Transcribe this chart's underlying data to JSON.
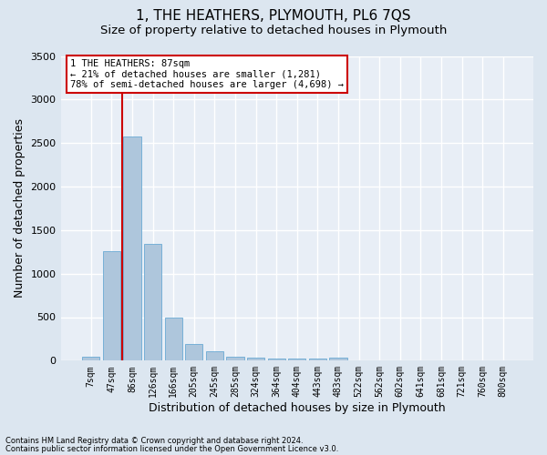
{
  "title": "1, THE HEATHERS, PLYMOUTH, PL6 7QS",
  "subtitle": "Size of property relative to detached houses in Plymouth",
  "xlabel": "Distribution of detached houses by size in Plymouth",
  "ylabel": "Number of detached properties",
  "categories": [
    "7sqm",
    "47sqm",
    "86sqm",
    "126sqm",
    "166sqm",
    "205sqm",
    "245sqm",
    "285sqm",
    "324sqm",
    "364sqm",
    "404sqm",
    "443sqm",
    "483sqm",
    "522sqm",
    "562sqm",
    "602sqm",
    "641sqm",
    "681sqm",
    "721sqm",
    "760sqm",
    "800sqm"
  ],
  "values": [
    50,
    1260,
    2570,
    1340,
    500,
    190,
    110,
    50,
    30,
    20,
    20,
    20,
    30,
    0,
    0,
    0,
    0,
    0,
    0,
    0,
    0
  ],
  "bar_color": "#aec6dc",
  "bar_edge_color": "#6aaad4",
  "highlight_color": "#cc0000",
  "highlight_index": 2,
  "ylim": [
    0,
    3500
  ],
  "yticks": [
    0,
    500,
    1000,
    1500,
    2000,
    2500,
    3000,
    3500
  ],
  "annotation_line1": "1 THE HEATHERS: 87sqm",
  "annotation_line2": "← 21% of detached houses are smaller (1,281)",
  "annotation_line3": "78% of semi-detached houses are larger (4,698) →",
  "annotation_box_facecolor": "#ffffff",
  "annotation_box_edgecolor": "#cc0000",
  "footnote1": "Contains HM Land Registry data © Crown copyright and database right 2024.",
  "footnote2": "Contains public sector information licensed under the Open Government Licence v3.0.",
  "fig_facecolor": "#dce6f0",
  "ax_facecolor": "#e8eef6",
  "grid_color": "#ffffff",
  "title_fontsize": 11,
  "subtitle_fontsize": 9.5,
  "tick_fontsize": 7,
  "ylabel_fontsize": 9,
  "xlabel_fontsize": 9,
  "annot_fontsize": 7.5,
  "footnote_fontsize": 6
}
